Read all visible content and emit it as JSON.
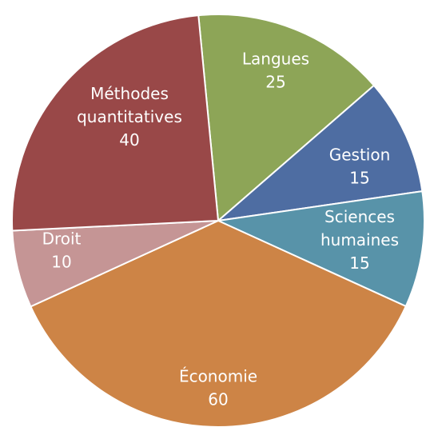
{
  "chart_data": {
    "type": "pie",
    "title": "",
    "categories": [
      "Langues",
      "Gestion",
      "Sciences humaines",
      "Économie",
      "Droit",
      "Méthodes quantitatives"
    ],
    "values": [
      25,
      15,
      15,
      60,
      10,
      40
    ],
    "label_lines": [
      [
        "Langues",
        "25"
      ],
      [
        "Gestion",
        "15"
      ],
      [
        "Sciences",
        "humaines",
        "15"
      ],
      [
        "Économie",
        "60"
      ],
      [
        "Droit",
        "10"
      ],
      [
        "Méthodes",
        "quantitatives",
        "40"
      ]
    ],
    "colors": [
      "#8DA557",
      "#4E6DA2",
      "#5893A9",
      "#CD8446",
      "#C59595",
      "#994848"
    ],
    "start_angle_deg": -5.5,
    "direction": "clockwise"
  }
}
